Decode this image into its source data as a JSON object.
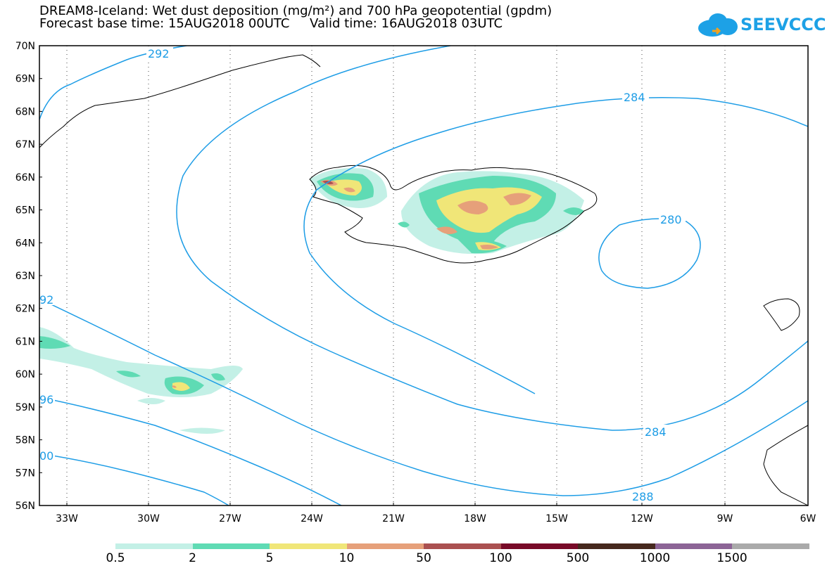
{
  "title": {
    "line1": "DREAM8-Iceland: Wet dust deposition (mg/m²) and 700 hPa geopotential (gpdm)",
    "line2": "Forecast base time: 15AUG2018 00UTC     Valid time: 16AUG2018 03UTC"
  },
  "logo": {
    "text": "SEEVCCC",
    "icon": "cloud-icon",
    "color": "#1da1e6"
  },
  "axes": {
    "lat_labels": [
      "70N",
      "69N",
      "68N",
      "67N",
      "66N",
      "65N",
      "64N",
      "63N",
      "62N",
      "61N",
      "60N",
      "59N",
      "58N",
      "57N",
      "56N"
    ],
    "lon_labels": [
      "33W",
      "30W",
      "27W",
      "24W",
      "21W",
      "18W",
      "15W",
      "12W",
      "9W",
      "6W"
    ]
  },
  "contours": {
    "color": "#1e9de6",
    "labels": [
      "292",
      "284",
      "280",
      "92",
      "96",
      "00",
      "284",
      "288"
    ]
  },
  "legend": {
    "colors": [
      "#c3f0e6",
      "#5fdbb4",
      "#f0e678",
      "#e6a07a",
      "#aa5050",
      "#780a28",
      "#46281e",
      "#8c6496",
      "#aaaaaa"
    ],
    "labels": [
      "0.5",
      "2",
      "5",
      "10",
      "50",
      "100",
      "500",
      "1000",
      "1500"
    ]
  }
}
